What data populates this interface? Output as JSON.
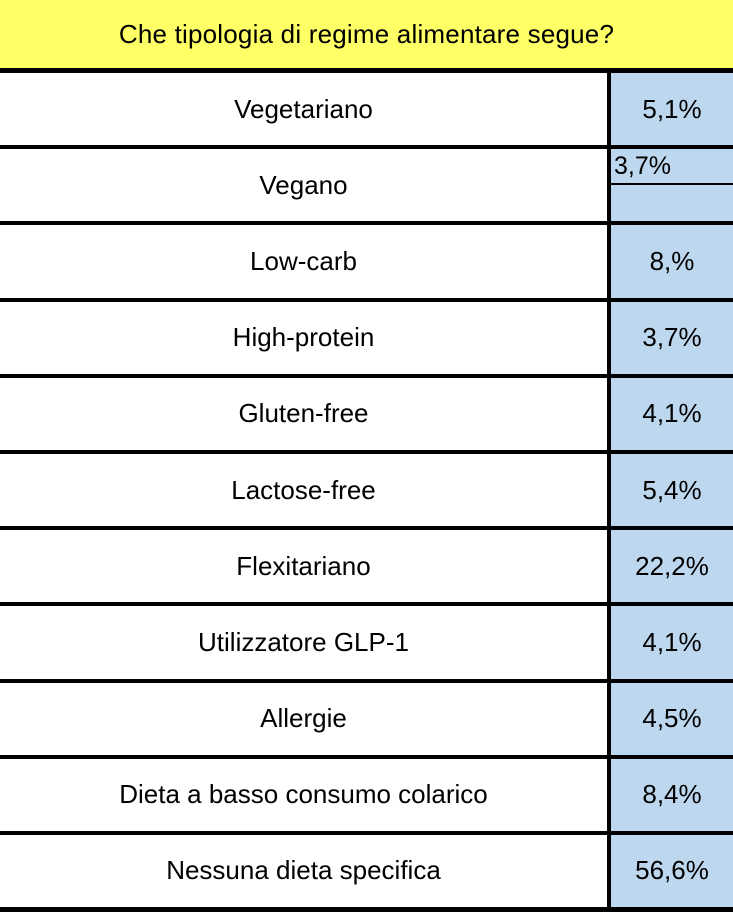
{
  "header": {
    "title": "Che tipologia di regime alimentare segue?"
  },
  "colors": {
    "header_bg": "#FFFF66",
    "value_bg": "#BDD7EE",
    "border": "#000000",
    "text": "#000000"
  },
  "rows": [
    {
      "label": "Vegetariano",
      "value": "5,1%",
      "split_cell": false
    },
    {
      "label": "Vegano",
      "value": "3,7%",
      "split_cell": true
    },
    {
      "label": "Low-carb",
      "value": "8,%",
      "split_cell": false
    },
    {
      "label": "High-protein",
      "value": "3,7%",
      "split_cell": false
    },
    {
      "label": "Gluten-free",
      "value": "4,1%",
      "split_cell": false
    },
    {
      "label": "Lactose-free",
      "value": "5,4%",
      "split_cell": false
    },
    {
      "label": "Flexitariano",
      "value": "22,2%",
      "split_cell": false
    },
    {
      "label": "Utilizzatore GLP-1",
      "value": "4,1%",
      "split_cell": false
    },
    {
      "label": "Allergie",
      "value": "4,5%",
      "split_cell": false
    },
    {
      "label": "Dieta a basso consumo colarico",
      "value": "8,4%",
      "split_cell": false
    },
    {
      "label": "Nessuna dieta specifica",
      "value": "56,6%",
      "split_cell": false
    }
  ],
  "chart_data": {
    "type": "table",
    "title": "Che tipologia di regime alimentare segue?",
    "categories": [
      "Vegetariano",
      "Vegano",
      "Low-carb",
      "High-protein",
      "Gluten-free",
      "Lactose-free",
      "Flexitariano",
      "Utilizzatore GLP-1",
      "Allergie",
      "Dieta a basso consumo colarico",
      "Nessuna dieta specifica"
    ],
    "values": [
      "5,1%",
      "3,7%",
      "8,%",
      "3,7%",
      "4,1%",
      "5,4%",
      "22,2%",
      "4,1%",
      "4,5%",
      "8,4%",
      "56,6%"
    ],
    "numeric_values_percent": [
      5.1,
      3.7,
      8,
      3.7,
      4.1,
      5.4,
      22.2,
      4.1,
      4.5,
      8.4,
      56.6
    ],
    "layout": {
      "header_background": "#FFFF66",
      "value_column_background": "#BDD7EE",
      "grid": "horizontal black rules, single vertical rule before value column"
    }
  }
}
